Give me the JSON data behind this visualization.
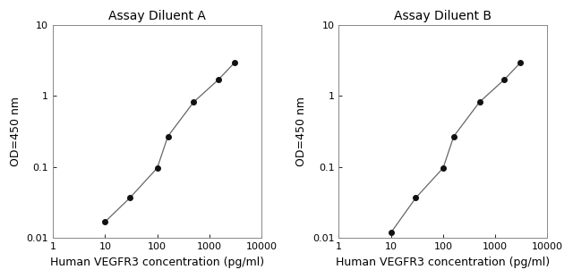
{
  "panel_A": {
    "title": "Assay Diluent A",
    "x": [
      10,
      30,
      100,
      160,
      500,
      1500,
      3000
    ],
    "y": [
      0.017,
      0.037,
      0.097,
      0.27,
      0.82,
      1.7,
      2.9
    ]
  },
  "panel_B": {
    "title": "Assay Diluent B",
    "x": [
      10,
      30,
      100,
      160,
      500,
      1500,
      3000
    ],
    "y": [
      0.012,
      0.037,
      0.097,
      0.27,
      0.82,
      1.7,
      2.9
    ]
  },
  "xlabel": "Human VEGFR3 concentration (pg/ml)",
  "ylabel": "OD=450 nm",
  "xlim": [
    1,
    10000
  ],
  "ylim": [
    0.01,
    10
  ],
  "xticks": [
    1,
    10,
    100,
    1000,
    10000
  ],
  "xtick_labels": [
    "1",
    "10",
    "100",
    "1000",
    "10000"
  ],
  "yticks": [
    0.01,
    0.1,
    1,
    10
  ],
  "ytick_labels": [
    "0.01",
    "0.1",
    "1",
    "10"
  ],
  "line_color": "#666666",
  "marker_color": "#111111",
  "marker_size": 4,
  "title_fontsize": 10,
  "label_fontsize": 9,
  "tick_fontsize": 8,
  "background_color": "#ffffff"
}
